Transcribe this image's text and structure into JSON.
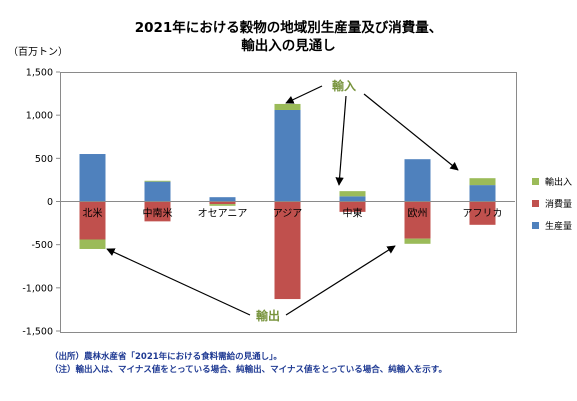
{
  "header": {
    "title_line1": "2021年における穀物の地域別生産量及び消費量、",
    "title_line2": "輸出入の見通し",
    "unit_label": "（百万トン）"
  },
  "notes": {
    "source": "（出所）農林水産省「2021年における食料需給の見通し」。",
    "note": "（注）輸出入は、マイナス値をとっている場合、純輸出、マイナス値をとっている場合、純輸入を示す。"
  },
  "annotations": {
    "import_label": "輸入",
    "export_label": "輸出",
    "import_color": "#77933c",
    "export_color": "#77933c"
  },
  "chart_data": {
    "type": "bar",
    "stacked": true,
    "categories": [
      "北米",
      "中南米",
      "オセアニア",
      "アジア",
      "中東",
      "欧州",
      "アフリカ"
    ],
    "series": [
      {
        "name": "生産量",
        "color": "#4f81bd",
        "values": [
          550,
          230,
          50,
          1060,
          60,
          490,
          190
        ]
      },
      {
        "name": "消費量",
        "color": "#c0504d",
        "values": [
          -440,
          -230,
          -30,
          -1130,
          -120,
          -430,
          -270
        ]
      },
      {
        "name": "輸出入",
        "color": "#9bbb59",
        "values": [
          -110,
          10,
          -20,
          70,
          60,
          -60,
          80
        ]
      }
    ],
    "ylim": [
      -1500,
      1500
    ],
    "yticks": [
      -1500,
      -1000,
      -500,
      0,
      500,
      1000,
      1500
    ],
    "ytick_labels": [
      "-1,500",
      "-1,000",
      "-500",
      "0",
      "500",
      "1,000",
      "1,500"
    ],
    "legend_position": "right",
    "legend_order": [
      "輸出入",
      "消費量",
      "生産量"
    ],
    "grid": false
  }
}
